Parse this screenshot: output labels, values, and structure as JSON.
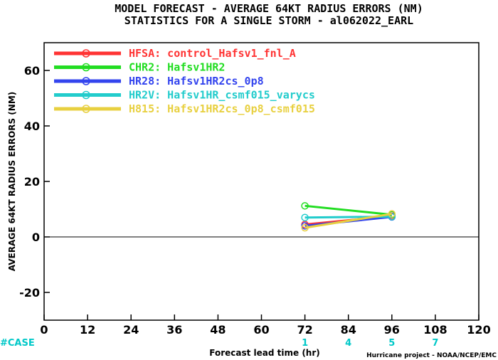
{
  "chart_data": {
    "type": "line",
    "title": "MODEL FORECAST - AVERAGE 64KT RADIUS ERRORS (NM)",
    "subtitle": "STATISTICS FOR A SINGLE STORM - al062022_EARL",
    "xlabel": "Forecast lead time (hr)",
    "ylabel": "AVERAGE 64KT RADIUS ERRORS (NM)",
    "xlim": [
      0,
      120
    ],
    "ylim": [
      -30,
      70
    ],
    "x_ticks": [
      0,
      12,
      24,
      36,
      48,
      60,
      72,
      84,
      96,
      108,
      120
    ],
    "y_ticks": [
      -20,
      0,
      20,
      40,
      60
    ],
    "case_label": "#CASE",
    "case_hours": [
      72,
      84,
      96,
      108
    ],
    "case_counts": [
      1,
      4,
      5,
      7
    ],
    "credit": "Hurricane project - NOAA/NCEP/EMC",
    "series": [
      {
        "name": "HFSA",
        "description": "control_Hafsv1_fnl_A",
        "color": "#ff3333",
        "x": [
          72,
          96
        ],
        "y": [
          4.5,
          7.5
        ]
      },
      {
        "name": "CHR2",
        "description": "Hafsv1HR2",
        "color": "#22dd22",
        "x": [
          72,
          96
        ],
        "y": [
          11.2,
          8.0
        ]
      },
      {
        "name": "HR28",
        "description": "Hafsv1HR2cs_0p8",
        "color": "#3344ee",
        "x": [
          72,
          96
        ],
        "y": [
          4.0,
          7.2
        ]
      },
      {
        "name": "HR2V",
        "description": "Hafsv1HR_csmf015_varycs",
        "color": "#22cccc",
        "x": [
          72,
          96
        ],
        "y": [
          7.0,
          7.3
        ]
      },
      {
        "name": "H815",
        "description": "Hafsv1HR2cs_0p8_csmf015",
        "color": "#e8d040",
        "x": [
          72,
          96
        ],
        "y": [
          3.3,
          8.3
        ]
      }
    ]
  }
}
